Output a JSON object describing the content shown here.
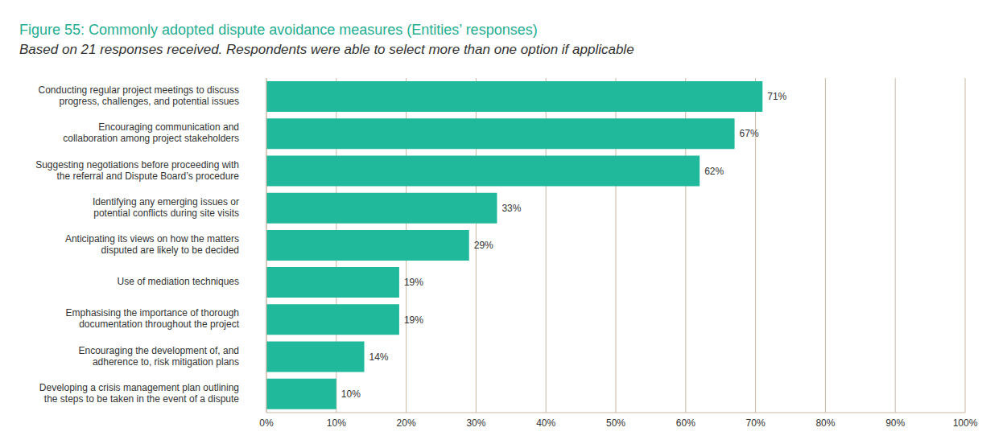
{
  "chart_data": {
    "type": "bar",
    "orientation": "horizontal",
    "title": "Figure 55: Commonly adopted dispute avoidance measures (Entities’ responses)",
    "subtitle": "Based on 21 responses received. Respondents were able to select more than one option if applicable",
    "categories": [
      "Conducting regular project meetings to discuss progress, challenges, and potential issues",
      "Encouraging communication and collaboration among project stakeholders",
      "Suggesting negotiations before proceeding with the referral and Dispute Board’s procedure",
      "Identifying any emerging issues or potential conflicts during site visits",
      "Anticipating its views on how the matters disputed are likely to be decided",
      "Use of mediation techniques",
      "Emphasising the importance of thorough documentation throughout the project",
      "Encouraging the development of, and adherence to, risk mitigation plans",
      "Developing a crisis management plan outlining the steps to be taken in the event of a dispute"
    ],
    "values": [
      71,
      67,
      62,
      33,
      29,
      19,
      19,
      14,
      10
    ],
    "value_labels": [
      "71%",
      "67%",
      "62%",
      "33%",
      "29%",
      "19%",
      "19%",
      "14%",
      "10%"
    ],
    "color": "#20b99b",
    "xlim": [
      0,
      100
    ],
    "xticks": [
      {
        "value": 0,
        "label": "0%"
      },
      {
        "value": 10,
        "label": "10%"
      },
      {
        "value": 20,
        "label": "20%"
      },
      {
        "value": 30,
        "label": "30%"
      },
      {
        "value": 40,
        "label": "40%"
      },
      {
        "value": 50,
        "label": "50%"
      },
      {
        "value": 60,
        "label": "60%"
      },
      {
        "value": 70,
        "label": "70%"
      },
      {
        "value": 80,
        "label": "80%"
      },
      {
        "value": 90,
        "label": "90%"
      },
      {
        "value": 100,
        "label": "100%"
      }
    ],
    "grid": true,
    "data_labels": true
  }
}
